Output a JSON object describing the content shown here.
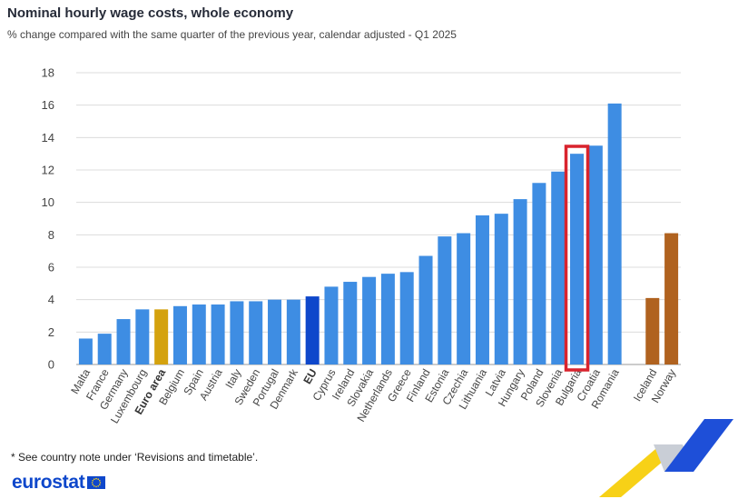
{
  "header": {
    "title": "Nominal hourly wage costs, whole economy",
    "subtitle": "% change compared with the same quarter of the previous year, calendar adjusted - Q1 2025"
  },
  "footer": {
    "note": "* See country note under ‘Revisions and timetable’.",
    "brand": "eurostat"
  },
  "colors": {
    "bar_default": "#3e8de3",
    "euro_area": "#d4a20e",
    "eu": "#0e47cb",
    "non_eu": "#b0621f",
    "highlight_box": "#d9232d",
    "grid": "#dcdcdc",
    "axis_text": "#444444"
  },
  "chart_data": {
    "type": "bar",
    "ylim": [
      0,
      18
    ],
    "yticks": [
      0,
      2,
      4,
      6,
      8,
      10,
      12,
      14,
      16,
      18
    ],
    "grid": true,
    "categories": [
      "Malta",
      "France",
      "Germany",
      "Luxembourg",
      "Euro area",
      "Belgium",
      "Spain",
      "Austria",
      "Italy",
      "Sweden",
      "Portugal",
      "Denmark",
      "EU",
      "Cyprus",
      "Ireland",
      "Slovakia",
      "Netherlands",
      "Greece",
      "Finland",
      "Estonia",
      "Czechia",
      "Lithuania",
      "Latvia",
      "Hungary",
      "Poland",
      "Slovenia",
      "Bulgaria",
      "Croatia",
      "Romania",
      "Iceland",
      "Norway"
    ],
    "values": [
      1.6,
      1.9,
      2.8,
      3.4,
      3.4,
      3.6,
      3.7,
      3.7,
      3.9,
      3.9,
      4.0,
      4.0,
      4.2,
      4.8,
      5.1,
      5.4,
      5.6,
      5.7,
      6.7,
      7.9,
      8.1,
      9.2,
      9.3,
      10.2,
      11.2,
      11.9,
      13.0,
      13.5,
      16.1,
      4.1,
      8.1
    ],
    "groups": [
      "default",
      "default",
      "default",
      "default",
      "euro_area",
      "default",
      "default",
      "default",
      "default",
      "default",
      "default",
      "default",
      "eu",
      "default",
      "default",
      "default",
      "default",
      "default",
      "default",
      "default",
      "default",
      "default",
      "default",
      "default",
      "default",
      "default",
      "default",
      "default",
      "default",
      "non_eu",
      "non_eu"
    ],
    "bold_labels": [
      "Euro area",
      "EU"
    ],
    "highlighted": [
      "Bulgaria"
    ]
  }
}
